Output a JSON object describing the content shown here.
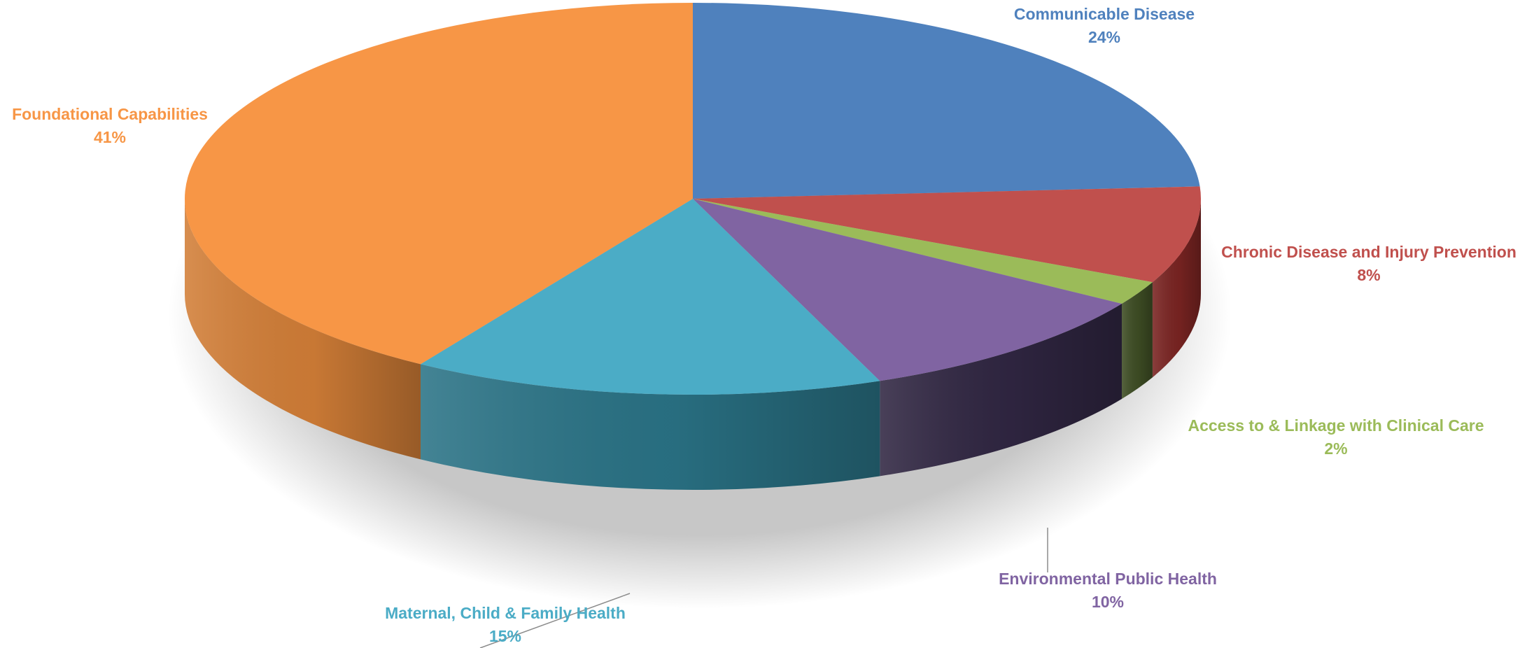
{
  "chart_data": {
    "type": "pie",
    "style": "3d",
    "title": "",
    "slices": [
      {
        "label": "Communicable Disease",
        "percent_label": "24%",
        "value": 24,
        "color": "#4f81bd",
        "side_color": "#31527c"
      },
      {
        "label": "Chronic Disease and Injury Prevention",
        "percent_label": "8%",
        "value": 8,
        "color": "#c0504d",
        "side_color": "#7a2422"
      },
      {
        "label": "Access to & Linkage with Clinical Care",
        "percent_label": "2%",
        "value": 2,
        "color": "#9bbb59",
        "side_color": "#3e4d24"
      },
      {
        "label": "Environmental Public Health",
        "percent_label": "10%",
        "value": 10,
        "color": "#8064a2",
        "side_color": "#302642"
      },
      {
        "label": "Maternal, Child & Family Health",
        "percent_label": "15%",
        "value": 15,
        "color": "#4bacc6",
        "side_color": "#2a7386"
      },
      {
        "label": "Foundational Capabilities",
        "percent_label": "41%",
        "value": 41,
        "color": "#f79646",
        "side_color": "#d27e37"
      }
    ]
  }
}
